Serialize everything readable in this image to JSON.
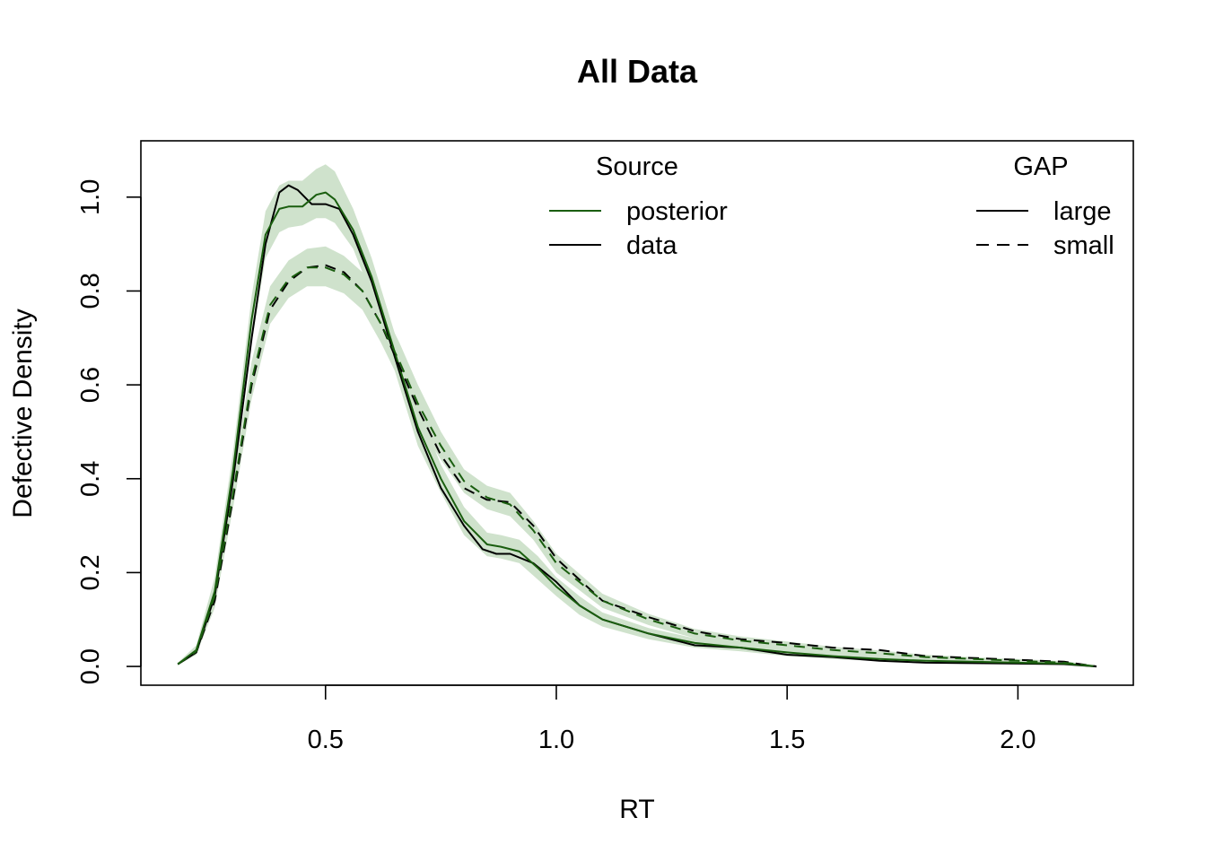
{
  "chart_data": {
    "type": "line",
    "title": "All Data",
    "xlabel": "RT",
    "ylabel": "Defective Density",
    "xlim": [
      0.1,
      2.25
    ],
    "ylim": [
      -0.04,
      1.12
    ],
    "x_ticks": [
      0.5,
      1.0,
      1.5,
      2.0
    ],
    "x_tick_labels": [
      "0.5",
      "1.0",
      "1.5",
      "2.0"
    ],
    "y_ticks": [
      0.0,
      0.2,
      0.4,
      0.6,
      0.8,
      1.0
    ],
    "y_tick_labels": [
      "0.0",
      "0.2",
      "0.4",
      "0.6",
      "0.8",
      "1.0"
    ],
    "grid": false,
    "colors": {
      "posterior": "#1a5e0f",
      "data": "#000000",
      "band": "#cfe2cc"
    },
    "legend_source": {
      "title": "Source",
      "placement": "top-center",
      "entries": [
        {
          "label": "posterior",
          "color": "#1a5e0f",
          "dash": "solid"
        },
        {
          "label": "data",
          "color": "#000000",
          "dash": "solid"
        }
      ]
    },
    "legend_gap": {
      "title": "GAP",
      "placement": "top-right",
      "entries": [
        {
          "label": "large",
          "color": "#000000",
          "dash": "solid"
        },
        {
          "label": "small",
          "color": "#000000",
          "dash": "dashed"
        }
      ]
    },
    "series": [
      {
        "source": "data",
        "gap": "large",
        "color": "#000000",
        "dash": "solid",
        "x": [
          0.18,
          0.22,
          0.26,
          0.3,
          0.34,
          0.37,
          0.4,
          0.42,
          0.44,
          0.47,
          0.5,
          0.53,
          0.56,
          0.6,
          0.65,
          0.7,
          0.75,
          0.8,
          0.84,
          0.87,
          0.9,
          0.95,
          1.0,
          1.05,
          1.1,
          1.2,
          1.3,
          1.4,
          1.5,
          1.6,
          1.7,
          1.8,
          1.9,
          2.0,
          2.1,
          2.17
        ],
        "y": [
          0.005,
          0.03,
          0.15,
          0.4,
          0.7,
          0.9,
          1.01,
          1.025,
          1.015,
          0.985,
          0.985,
          0.975,
          0.92,
          0.82,
          0.66,
          0.5,
          0.38,
          0.3,
          0.25,
          0.24,
          0.24,
          0.22,
          0.18,
          0.13,
          0.1,
          0.07,
          0.045,
          0.04,
          0.025,
          0.02,
          0.012,
          0.008,
          0.007,
          0.006,
          0.005,
          0.0
        ]
      },
      {
        "source": "posterior",
        "gap": "large",
        "color": "#1a5e0f",
        "dash": "solid",
        "x": [
          0.18,
          0.22,
          0.26,
          0.3,
          0.34,
          0.37,
          0.4,
          0.42,
          0.45,
          0.48,
          0.5,
          0.52,
          0.56,
          0.6,
          0.65,
          0.7,
          0.75,
          0.8,
          0.85,
          0.88,
          0.92,
          0.96,
          1.0,
          1.05,
          1.1,
          1.2,
          1.3,
          1.4,
          1.5,
          1.6,
          1.7,
          1.8,
          1.9,
          2.0,
          2.1,
          2.17
        ],
        "y": [
          0.005,
          0.035,
          0.16,
          0.42,
          0.74,
          0.92,
          0.975,
          0.98,
          0.98,
          1.005,
          1.01,
          0.995,
          0.93,
          0.83,
          0.67,
          0.51,
          0.4,
          0.31,
          0.26,
          0.255,
          0.245,
          0.21,
          0.17,
          0.13,
          0.1,
          0.07,
          0.05,
          0.04,
          0.03,
          0.022,
          0.016,
          0.012,
          0.01,
          0.008,
          0.006,
          0.0
        ]
      },
      {
        "source": "data",
        "gap": "small",
        "color": "#000000",
        "dash": "dashed",
        "x": [
          0.18,
          0.22,
          0.26,
          0.3,
          0.34,
          0.38,
          0.42,
          0.46,
          0.5,
          0.54,
          0.58,
          0.62,
          0.66,
          0.7,
          0.75,
          0.8,
          0.85,
          0.9,
          0.95,
          1.0,
          1.1,
          1.2,
          1.3,
          1.4,
          1.5,
          1.6,
          1.7,
          1.8,
          1.9,
          2.0,
          2.1,
          2.17
        ],
        "y": [
          0.005,
          0.03,
          0.14,
          0.36,
          0.6,
          0.76,
          0.82,
          0.85,
          0.855,
          0.84,
          0.8,
          0.73,
          0.64,
          0.55,
          0.45,
          0.38,
          0.355,
          0.35,
          0.3,
          0.23,
          0.14,
          0.105,
          0.075,
          0.058,
          0.05,
          0.04,
          0.035,
          0.022,
          0.018,
          0.014,
          0.01,
          0.0
        ]
      },
      {
        "source": "posterior",
        "gap": "small",
        "color": "#1a5e0f",
        "dash": "dashed",
        "x": [
          0.18,
          0.22,
          0.26,
          0.3,
          0.34,
          0.38,
          0.42,
          0.46,
          0.5,
          0.54,
          0.58,
          0.62,
          0.66,
          0.7,
          0.75,
          0.8,
          0.85,
          0.9,
          0.95,
          1.0,
          1.1,
          1.2,
          1.3,
          1.4,
          1.5,
          1.6,
          1.7,
          1.8,
          1.9,
          2.0,
          2.1,
          2.17
        ],
        "y": [
          0.005,
          0.032,
          0.15,
          0.37,
          0.61,
          0.77,
          0.825,
          0.85,
          0.85,
          0.835,
          0.8,
          0.73,
          0.65,
          0.56,
          0.47,
          0.395,
          0.36,
          0.345,
          0.29,
          0.22,
          0.14,
          0.1,
          0.07,
          0.055,
          0.045,
          0.035,
          0.028,
          0.02,
          0.016,
          0.012,
          0.008,
          0.0
        ]
      }
    ],
    "bands": [
      {
        "source": "posterior",
        "gap": "large",
        "x": [
          0.18,
          0.22,
          0.26,
          0.3,
          0.34,
          0.37,
          0.4,
          0.42,
          0.45,
          0.48,
          0.5,
          0.52,
          0.56,
          0.6,
          0.65,
          0.7,
          0.75,
          0.8,
          0.85,
          0.88,
          0.92,
          0.96,
          1.0,
          1.05,
          1.1,
          1.2,
          1.3,
          1.4,
          1.5,
          1.6,
          1.7,
          1.8,
          1.9,
          2.0,
          2.1,
          2.17
        ],
        "lower": [
          0.003,
          0.025,
          0.13,
          0.38,
          0.69,
          0.87,
          0.925,
          0.935,
          0.94,
          0.955,
          0.955,
          0.945,
          0.89,
          0.79,
          0.63,
          0.47,
          0.37,
          0.28,
          0.235,
          0.23,
          0.22,
          0.185,
          0.15,
          0.11,
          0.085,
          0.058,
          0.04,
          0.032,
          0.022,
          0.016,
          0.011,
          0.008,
          0.006,
          0.005,
          0.004,
          0.0
        ],
        "upper": [
          0.008,
          0.045,
          0.19,
          0.46,
          0.79,
          0.97,
          1.025,
          1.035,
          1.035,
          1.06,
          1.07,
          1.055,
          0.975,
          0.87,
          0.71,
          0.55,
          0.43,
          0.34,
          0.285,
          0.28,
          0.27,
          0.235,
          0.19,
          0.15,
          0.115,
          0.082,
          0.06,
          0.05,
          0.038,
          0.029,
          0.022,
          0.017,
          0.014,
          0.011,
          0.008,
          0.002
        ]
      },
      {
        "source": "posterior",
        "gap": "small",
        "x": [
          0.18,
          0.22,
          0.26,
          0.3,
          0.34,
          0.38,
          0.42,
          0.46,
          0.5,
          0.54,
          0.58,
          0.62,
          0.66,
          0.7,
          0.75,
          0.8,
          0.85,
          0.9,
          0.95,
          1.0,
          1.1,
          1.2,
          1.3,
          1.4,
          1.5,
          1.6,
          1.7,
          1.8,
          1.9,
          2.0,
          2.1,
          2.17
        ],
        "lower": [
          0.003,
          0.025,
          0.125,
          0.34,
          0.57,
          0.73,
          0.785,
          0.81,
          0.81,
          0.795,
          0.76,
          0.69,
          0.61,
          0.52,
          0.44,
          0.37,
          0.335,
          0.32,
          0.27,
          0.2,
          0.125,
          0.088,
          0.06,
          0.046,
          0.037,
          0.028,
          0.022,
          0.015,
          0.012,
          0.009,
          0.006,
          0.0
        ],
        "upper": [
          0.008,
          0.042,
          0.18,
          0.4,
          0.65,
          0.81,
          0.865,
          0.89,
          0.895,
          0.875,
          0.84,
          0.77,
          0.69,
          0.6,
          0.5,
          0.42,
          0.385,
          0.37,
          0.31,
          0.24,
          0.155,
          0.112,
          0.08,
          0.064,
          0.053,
          0.042,
          0.034,
          0.025,
          0.02,
          0.016,
          0.011,
          0.003
        ]
      }
    ]
  }
}
